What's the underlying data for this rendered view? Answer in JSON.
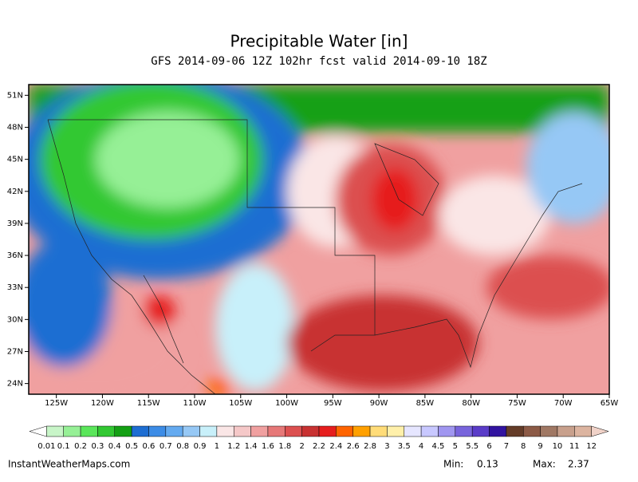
{
  "map": {
    "title": "Precipitable Water [in]",
    "subtitle": "GFS 2014-09-06 12Z 102hr fcst valid 2014-09-10 18Z",
    "lonlim": [
      -128,
      -65
    ],
    "latlim": [
      23,
      52
    ],
    "lonticks": [
      {
        "value": -125,
        "label": "125W"
      },
      {
        "value": -120,
        "label": "120W"
      },
      {
        "value": -115,
        "label": "115W"
      },
      {
        "value": -110,
        "label": "110W"
      },
      {
        "value": -105,
        "label": "105W"
      },
      {
        "value": -100,
        "label": "100W"
      },
      {
        "value": -95,
        "label": "95W"
      },
      {
        "value": -90,
        "label": "90W"
      },
      {
        "value": -85,
        "label": "85W"
      },
      {
        "value": -80,
        "label": "80W"
      },
      {
        "value": -75,
        "label": "75W"
      },
      {
        "value": -70,
        "label": "70W"
      },
      {
        "value": -65,
        "label": "65W"
      }
    ],
    "latticks": [
      {
        "value": 51,
        "label": "51N"
      },
      {
        "value": 48,
        "label": "48N"
      },
      {
        "value": 45,
        "label": "45N"
      },
      {
        "value": 42,
        "label": "42N"
      },
      {
        "value": 39,
        "label": "39N"
      },
      {
        "value": 36,
        "label": "36N"
      },
      {
        "value": 33,
        "label": "33N"
      },
      {
        "value": 30,
        "label": "30N"
      },
      {
        "value": 27,
        "label": "27N"
      },
      {
        "value": 24,
        "label": "24N"
      }
    ],
    "colorbar": {
      "levels": [
        0.01,
        0.1,
        0.2,
        0.3,
        0.4,
        0.5,
        0.6,
        0.7,
        0.8,
        0.9,
        1,
        1.2,
        1.4,
        1.6,
        1.8,
        2,
        2.2,
        2.4,
        2.6,
        2.8,
        3,
        3.5,
        4,
        4.5,
        5,
        5.5,
        6,
        7,
        8,
        9,
        10,
        11,
        12
      ],
      "colors": [
        "#ffffff",
        "#c8f5c8",
        "#96f096",
        "#5ae65a",
        "#32c832",
        "#14a014",
        "#1e6ed2",
        "#3c8ce6",
        "#64aaf0",
        "#96c8f5",
        "#c8f0fa",
        "#fae6e6",
        "#f5c8c8",
        "#f0a0a0",
        "#e67878",
        "#dc5050",
        "#c83232",
        "#e61e1e",
        "#ff6400",
        "#ffa000",
        "#ffdc78",
        "#fff0aa",
        "#e6e6ff",
        "#c8c8ff",
        "#a096f0",
        "#7864dc",
        "#5a3cc8",
        "#3214a0",
        "#643c28",
        "#8c5a46",
        "#a07864",
        "#c8a08c",
        "#dcb4a0",
        "#f0d2c8"
      ]
    },
    "source": "InstantWeatherMaps.com",
    "min": {
      "label": "Min:",
      "value": 0.13
    },
    "max": {
      "label": "Max:",
      "value": 2.37
    }
  }
}
